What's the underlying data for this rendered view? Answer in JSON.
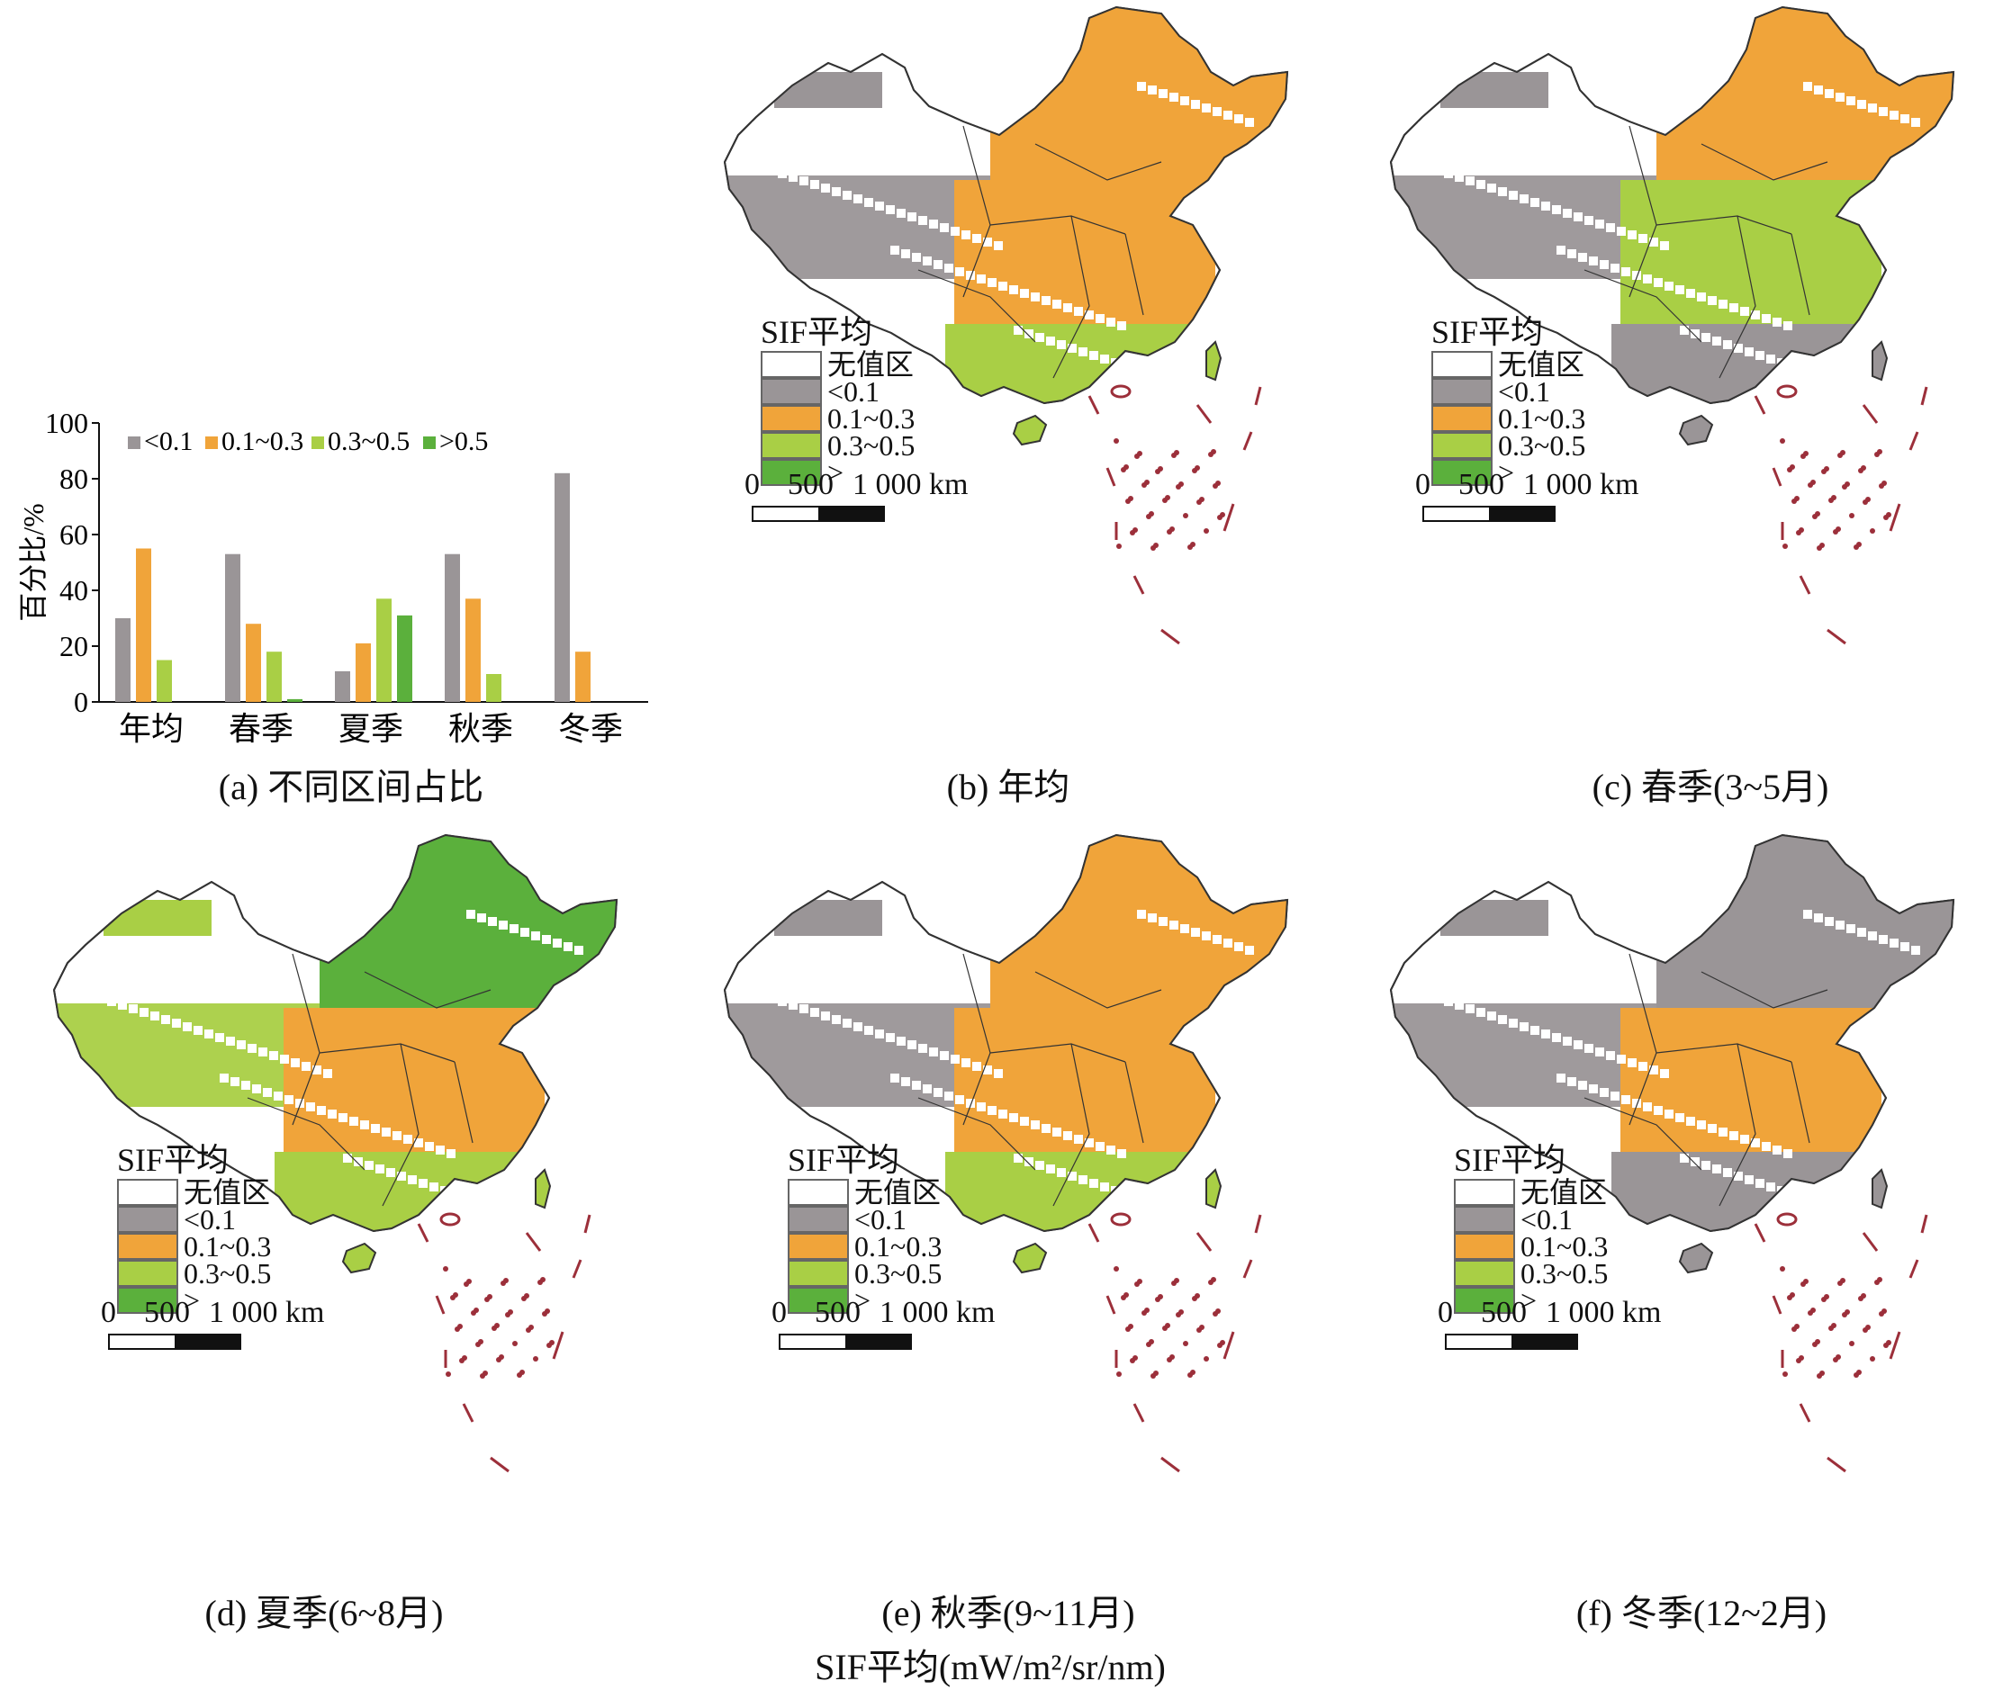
{
  "colors": {
    "nodata": "#ffffff",
    "lt01": "#9a9597",
    "b0103": "#f0a43a",
    "b0305": "#a9cf45",
    "gt05": "#5bb03c",
    "border": "#333333",
    "islands": "#9c2f3a"
  },
  "chart_data": {
    "type": "bar",
    "categories": [
      "年均",
      "春季",
      "夏季",
      "秋季",
      "冬季"
    ],
    "series": [
      {
        "name": "<0.1",
        "values": [
          30,
          53,
          11,
          53,
          82
        ]
      },
      {
        "name": "0.1~0.3",
        "values": [
          55,
          28,
          21,
          37,
          18
        ]
      },
      {
        "name": "0.3~0.5",
        "values": [
          15,
          18,
          37,
          10,
          0
        ]
      },
      {
        "name": ">0.5",
        "values": [
          0,
          1,
          31,
          0,
          0
        ]
      }
    ],
    "ylabel": "百分比/%",
    "ylim": [
      0,
      100
    ],
    "yticks": [
      0,
      20,
      40,
      60,
      80,
      100
    ],
    "legend": "top"
  },
  "captions": {
    "a": "(a) 不同区间占比",
    "b": "(b) 年均",
    "c": "(c) 春季(3~5月)",
    "d": "(d) 夏季(6~8月)",
    "e": "(e) 秋季(9~11月)",
    "f": "(f) 冬季(12~2月)"
  },
  "bottom_title": "SIF平均(mW/m²/sr/nm)",
  "legend": {
    "title": "SIF平均",
    "items": [
      "无值区",
      "<0.1",
      "0.1~0.3",
      "0.3~0.5",
      ">"
    ]
  },
  "scale_bar": {
    "labels": [
      "0",
      "500",
      "1 000 km"
    ]
  }
}
